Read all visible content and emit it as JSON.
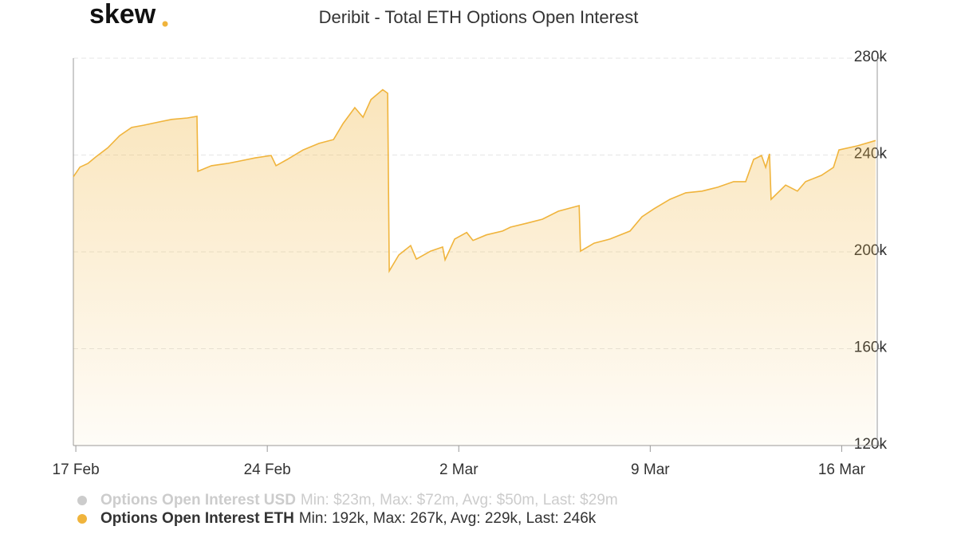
{
  "logo": "skew",
  "chart_data": {
    "type": "area",
    "title": "Deribit - Total ETH Options Open Interest",
    "x": [
      -0.09,
      0.15,
      0.44,
      0.73,
      1.17,
      1.6,
      2.04,
      2.48,
      3.06,
      3.5,
      4.08,
      4.43,
      4.46,
      4.96,
      5.54,
      5.98,
      6.56,
      7.14,
      7.32,
      7.73,
      8.31,
      8.89,
      9.42,
      9.77,
      10.2,
      10.5,
      10.79,
      11.22,
      11.4,
      11.46,
      11.81,
      12.24,
      12.45,
      12.97,
      13.41,
      13.5,
      13.85,
      14.29,
      14.52,
      15.01,
      15.6,
      15.89,
      16.47,
      17.06,
      17.64,
      18.4,
      18.45,
      18.95,
      19.53,
      20.26,
      20.7,
      21.14,
      21.72,
      22.3,
      22.89,
      23.47,
      24.05,
      24.49,
      24.78,
      25.07,
      25.22,
      25.36,
      25.42,
      25.95,
      26.38,
      26.68,
      27.26,
      27.7,
      27.9,
      28.57,
      29.24
    ],
    "series": [
      {
        "name": "Options Open Interest ETH",
        "stats": "Min: 192k, Max: 267k, Avg: 229k, Last: 246k",
        "color": "#f0b43c",
        "values": [
          231000,
          235000,
          236500,
          239200,
          243000,
          248000,
          251400,
          252300,
          253700,
          254700,
          255300,
          256000,
          233300,
          235600,
          236500,
          237500,
          238800,
          239800,
          235600,
          238200,
          242100,
          244800,
          246400,
          253000,
          259600,
          255600,
          262900,
          267000,
          265500,
          192100,
          198700,
          202600,
          197000,
          200300,
          202000,
          196700,
          205300,
          208000,
          204700,
          207000,
          208600,
          210200,
          211800,
          213500,
          216800,
          219100,
          200300,
          203600,
          205300,
          208600,
          214500,
          217800,
          221700,
          224400,
          225100,
          226700,
          229000,
          229000,
          238200,
          239800,
          234900,
          240500,
          221700,
          227600,
          225100,
          229000,
          231600,
          234900,
          242100,
          243800,
          246000
        ]
      }
    ],
    "hidden_series": [
      {
        "name": "Options Open Interest USD",
        "stats": "Min: $23m, Max: $72m, Avg: $50m, Last: $29m",
        "color": "#cccccc"
      }
    ],
    "xlim": [
      -0.09,
      29.3
    ],
    "xticks": [
      {
        "value": 0,
        "label": "17 Feb"
      },
      {
        "value": 7,
        "label": "24 Feb"
      },
      {
        "value": 14,
        "label": "2 Mar"
      },
      {
        "value": 21,
        "label": "9 Mar"
      },
      {
        "value": 28,
        "label": "16 Mar"
      }
    ],
    "ylim": [
      120000,
      280000
    ],
    "yticks": [
      {
        "value": 120000,
        "label": "120k"
      },
      {
        "value": 160000,
        "label": "160k"
      },
      {
        "value": 200000,
        "label": "200k"
      },
      {
        "value": 240000,
        "label": "240k"
      },
      {
        "value": 280000,
        "label": "280k"
      }
    ],
    "grid": true
  }
}
